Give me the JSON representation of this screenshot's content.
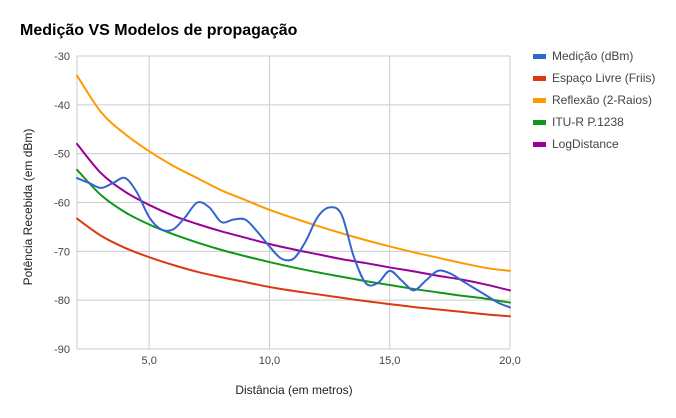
{
  "chart_data": {
    "type": "line",
    "title": "Medição VS Modelos de propagação",
    "xlabel": "Distância (em metros)",
    "ylabel": "Potência Recebida (em dBm)",
    "xlim": [
      2,
      20
    ],
    "ylim": [
      -90,
      -30
    ],
    "x_ticks": [
      5,
      10,
      15,
      20
    ],
    "x_tick_labels": [
      "5,0",
      "10,0",
      "15,0",
      "20,0"
    ],
    "y_ticks": [
      -90,
      -80,
      -70,
      -60,
      -50,
      -40,
      -30
    ],
    "y_tick_labels": [
      "-90",
      "-80",
      "-70",
      "-60",
      "-50",
      "-40",
      "-30"
    ],
    "grid": true,
    "legend_position": "right",
    "series": [
      {
        "name": "Medição (dBm)",
        "color": "#3366cc",
        "x": [
          2,
          2.5,
          3,
          3.5,
          4,
          4.5,
          5,
          5.5,
          6,
          6.5,
          7,
          7.5,
          8,
          8.5,
          9,
          9.5,
          10,
          10.5,
          11,
          11.5,
          12,
          12.5,
          13,
          13.5,
          14,
          14.5,
          15,
          15.5,
          16,
          16.5,
          17,
          17.5,
          18,
          18.5,
          19,
          19.5,
          20
        ],
        "values": [
          -55,
          -56,
          -57,
          -56,
          -55,
          -58,
          -63,
          -65.5,
          -65.5,
          -63,
          -60,
          -61,
          -64,
          -63.5,
          -63.5,
          -66,
          -69,
          -71.5,
          -71.5,
          -68,
          -63,
          -61,
          -62.5,
          -71,
          -76.5,
          -76.5,
          -74,
          -76,
          -78,
          -76,
          -74,
          -74.5,
          -76,
          -77.5,
          -79,
          -80.5,
          -81.5
        ]
      },
      {
        "name": "Espaço Livre (Friis)",
        "color": "#dc3912",
        "x": [
          2,
          3,
          4,
          5,
          6,
          7,
          8,
          9,
          10,
          11,
          12,
          13,
          14,
          15,
          16,
          17,
          18,
          19,
          20
        ],
        "values": [
          -63.3,
          -66.8,
          -69.3,
          -71.2,
          -72.8,
          -74.2,
          -75.3,
          -76.3,
          -77.3,
          -78.1,
          -78.8,
          -79.5,
          -80.2,
          -80.8,
          -81.4,
          -81.9,
          -82.4,
          -82.9,
          -83.3
        ]
      },
      {
        "name": "Reflexão (2-Raios)",
        "color": "#ff9900",
        "x": [
          2,
          3,
          4,
          5,
          6,
          7,
          8,
          9,
          10,
          11,
          12,
          13,
          14,
          15,
          16,
          17,
          18,
          19,
          20
        ],
        "values": [
          -34,
          -41.5,
          -46,
          -49.5,
          -52.5,
          -55,
          -57.5,
          -59.5,
          -61.5,
          -63.2,
          -64.8,
          -66.3,
          -67.7,
          -69,
          -70.2,
          -71.3,
          -72.4,
          -73.4,
          -74
        ]
      },
      {
        "name": "ITU-R P.1238",
        "color": "#109618",
        "x": [
          2,
          3,
          4,
          5,
          6,
          7,
          8,
          9,
          10,
          11,
          12,
          13,
          14,
          15,
          16,
          17,
          18,
          19,
          20
        ],
        "values": [
          -53.3,
          -58.5,
          -62,
          -64.5,
          -66.5,
          -68.2,
          -69.7,
          -71,
          -72.2,
          -73.3,
          -74.3,
          -75.2,
          -76.1,
          -76.9,
          -77.7,
          -78.4,
          -79.1,
          -79.7,
          -80.5
        ]
      },
      {
        "name": "LogDistance",
        "color": "#990099",
        "x": [
          2,
          3,
          4,
          5,
          6,
          7,
          8,
          9,
          10,
          11,
          12,
          13,
          14,
          15,
          16,
          17,
          18,
          19,
          20
        ],
        "values": [
          -48,
          -54,
          -57.8,
          -60.5,
          -62.7,
          -64.4,
          -65.9,
          -67.2,
          -68.5,
          -69.6,
          -70.6,
          -71.6,
          -72.4,
          -73.3,
          -74.1,
          -75,
          -75.8,
          -76.8,
          -78
        ]
      }
    ]
  }
}
